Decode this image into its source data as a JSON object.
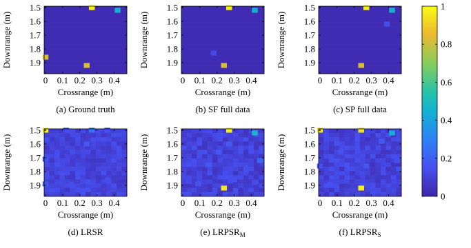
{
  "chart_data": [
    {
      "type": "heatmap",
      "caption": "(a) Ground truth",
      "xlabel": "Crossrange (m)",
      "ylabel": "Downrange (m)",
      "xlim": [
        0,
        0.45
      ],
      "ylim": [
        1.5,
        1.95
      ],
      "xticks": [
        "0",
        "0.1",
        "0.2",
        "0.3",
        "0.4"
      ],
      "yticks": [
        "1.5",
        "1.6",
        "1.7",
        "1.8",
        "1.9"
      ],
      "background": 0.02,
      "cells": [
        {
          "x": 0.27,
          "y": 1.5,
          "v": 0.98
        },
        {
          "x": 0.42,
          "y": 1.52,
          "v": 0.45
        },
        {
          "x": 0.0,
          "y": 1.86,
          "v": 0.82
        },
        {
          "x": 0.24,
          "y": 1.92,
          "v": 0.82
        }
      ]
    },
    {
      "type": "heatmap",
      "caption": "(b) SF full data",
      "xlabel": "Crossrange (m)",
      "ylabel": "Downrange (m)",
      "xlim": [
        0,
        0.45
      ],
      "ylim": [
        1.5,
        1.95
      ],
      "xticks": [
        "0",
        "0.1",
        "0.2",
        "0.3",
        "0.4"
      ],
      "yticks": [
        "1.5",
        "1.6",
        "1.7",
        "1.8",
        "1.9"
      ],
      "background": 0.02,
      "cells": [
        {
          "x": 0.27,
          "y": 1.5,
          "v": 0.98
        },
        {
          "x": 0.42,
          "y": 1.52,
          "v": 0.45
        },
        {
          "x": 0.18,
          "y": 1.83,
          "v": 0.13
        },
        {
          "x": 0.24,
          "y": 1.92,
          "v": 0.82
        }
      ]
    },
    {
      "type": "heatmap",
      "caption": "(c) SP full data",
      "xlabel": "Crossrange (m)",
      "ylabel": "Downrange (m)",
      "xlim": [
        0,
        0.45
      ],
      "ylim": [
        1.5,
        1.95
      ],
      "xticks": [
        "0",
        "0.1",
        "0.2",
        "0.3",
        "0.4"
      ],
      "yticks": [
        "1.5",
        "1.6",
        "1.7",
        "1.8",
        "1.9"
      ],
      "background": 0.02,
      "cells": [
        {
          "x": 0.27,
          "y": 1.5,
          "v": 0.98
        },
        {
          "x": 0.42,
          "y": 1.52,
          "v": 0.45
        },
        {
          "x": 0.39,
          "y": 1.62,
          "v": 0.14
        },
        {
          "x": 0.24,
          "y": 1.92,
          "v": 0.82
        }
      ]
    },
    {
      "type": "heatmap",
      "caption": "(d) LRSR",
      "xlabel": "Crossrange (m)",
      "ylabel": "Downrange (m)",
      "xlim": [
        0,
        0.45
      ],
      "ylim": [
        1.5,
        1.95
      ],
      "xticks": [
        "0",
        "0.1",
        "0.2",
        "0.3",
        "0.4"
      ],
      "yticks": [
        "1.5",
        "1.6",
        "1.7",
        "1.8",
        "1.9"
      ],
      "background": 0.06,
      "noise": 0.09,
      "seed": 11,
      "cells": [
        {
          "x": 0.0,
          "y": 1.5,
          "v": 0.97
        },
        {
          "x": 0.27,
          "y": 1.5,
          "v": 0.26
        },
        {
          "x": 0.12,
          "y": 1.5,
          "v": 0.15
        },
        {
          "x": 0.36,
          "y": 1.5,
          "v": 0.15
        },
        {
          "x": 0.24,
          "y": 1.6,
          "v": 0.17
        },
        {
          "x": 0.0,
          "y": 1.71,
          "v": 0.16
        },
        {
          "x": 0.42,
          "y": 1.7,
          "v": 0.13
        },
        {
          "x": 0.21,
          "y": 1.78,
          "v": 0.13
        },
        {
          "x": 0.0,
          "y": 1.89,
          "v": 0.17
        },
        {
          "x": 0.15,
          "y": 1.89,
          "v": 0.14
        },
        {
          "x": 0.36,
          "y": 1.86,
          "v": 0.14
        }
      ]
    },
    {
      "type": "heatmap",
      "caption": "(e) LRPSR",
      "caption_sub": "M",
      "xlabel": "Crossrange (m)",
      "ylabel": "Downrange (m)",
      "xlim": [
        0,
        0.45
      ],
      "ylim": [
        1.5,
        1.95
      ],
      "xticks": [
        "0",
        "0.1",
        "0.2",
        "0.3",
        "0.4"
      ],
      "yticks": [
        "1.5",
        "1.6",
        "1.7",
        "1.8",
        "1.9"
      ],
      "background": 0.05,
      "noise": 0.1,
      "seed": 23,
      "cells": [
        {
          "x": 0.27,
          "y": 1.5,
          "v": 0.97
        },
        {
          "x": 0.42,
          "y": 1.52,
          "v": 0.48
        },
        {
          "x": 0.27,
          "y": 1.6,
          "v": 0.18
        },
        {
          "x": 0.21,
          "y": 1.66,
          "v": 0.17
        },
        {
          "x": 0.45,
          "y": 1.72,
          "v": 0.22
        },
        {
          "x": 0.15,
          "y": 1.75,
          "v": 0.17
        },
        {
          "x": 0.09,
          "y": 1.89,
          "v": 0.16
        },
        {
          "x": 0.3,
          "y": 1.86,
          "v": 0.15
        },
        {
          "x": 0.24,
          "y": 1.92,
          "v": 0.95
        },
        {
          "x": 0.42,
          "y": 1.88,
          "v": 0.14
        }
      ]
    },
    {
      "type": "heatmap",
      "caption": "(f) LRPSR",
      "caption_sub": "S",
      "xlabel": "Crossrange (m)",
      "ylabel": "Downrange (m)",
      "xlim": [
        0,
        0.45
      ],
      "ylim": [
        1.5,
        1.95
      ],
      "xticks": [
        "0",
        "0.1",
        "0.2",
        "0.3",
        "0.4"
      ],
      "yticks": [
        "1.5",
        "1.6",
        "1.7",
        "1.8",
        "1.9"
      ],
      "background": 0.05,
      "noise": 0.1,
      "seed": 37,
      "cells": [
        {
          "x": 0.0,
          "y": 1.5,
          "v": 0.95
        },
        {
          "x": 0.24,
          "y": 1.5,
          "v": 0.93
        },
        {
          "x": 0.42,
          "y": 1.52,
          "v": 0.45
        },
        {
          "x": 0.36,
          "y": 1.58,
          "v": 0.18
        },
        {
          "x": 0.12,
          "y": 1.66,
          "v": 0.16
        },
        {
          "x": 0.0,
          "y": 1.76,
          "v": 0.15
        },
        {
          "x": 0.27,
          "y": 1.76,
          "v": 0.17
        },
        {
          "x": 0.45,
          "y": 1.72,
          "v": 0.15
        },
        {
          "x": 0.06,
          "y": 1.89,
          "v": 0.15
        },
        {
          "x": 0.24,
          "y": 1.92,
          "v": 0.97
        }
      ]
    }
  ],
  "colorbar": {
    "min": 0,
    "max": 1,
    "ticks": [
      "0",
      "0.2",
      "0.4",
      "0.6",
      "0.8",
      "1"
    ]
  },
  "colors": {
    "colormap": [
      "#440154",
      "#3b4fe2",
      "#2f7ff5",
      "#1aabde",
      "#25c6a7",
      "#7fd266",
      "#c9c53a",
      "#f9e721"
    ]
  }
}
